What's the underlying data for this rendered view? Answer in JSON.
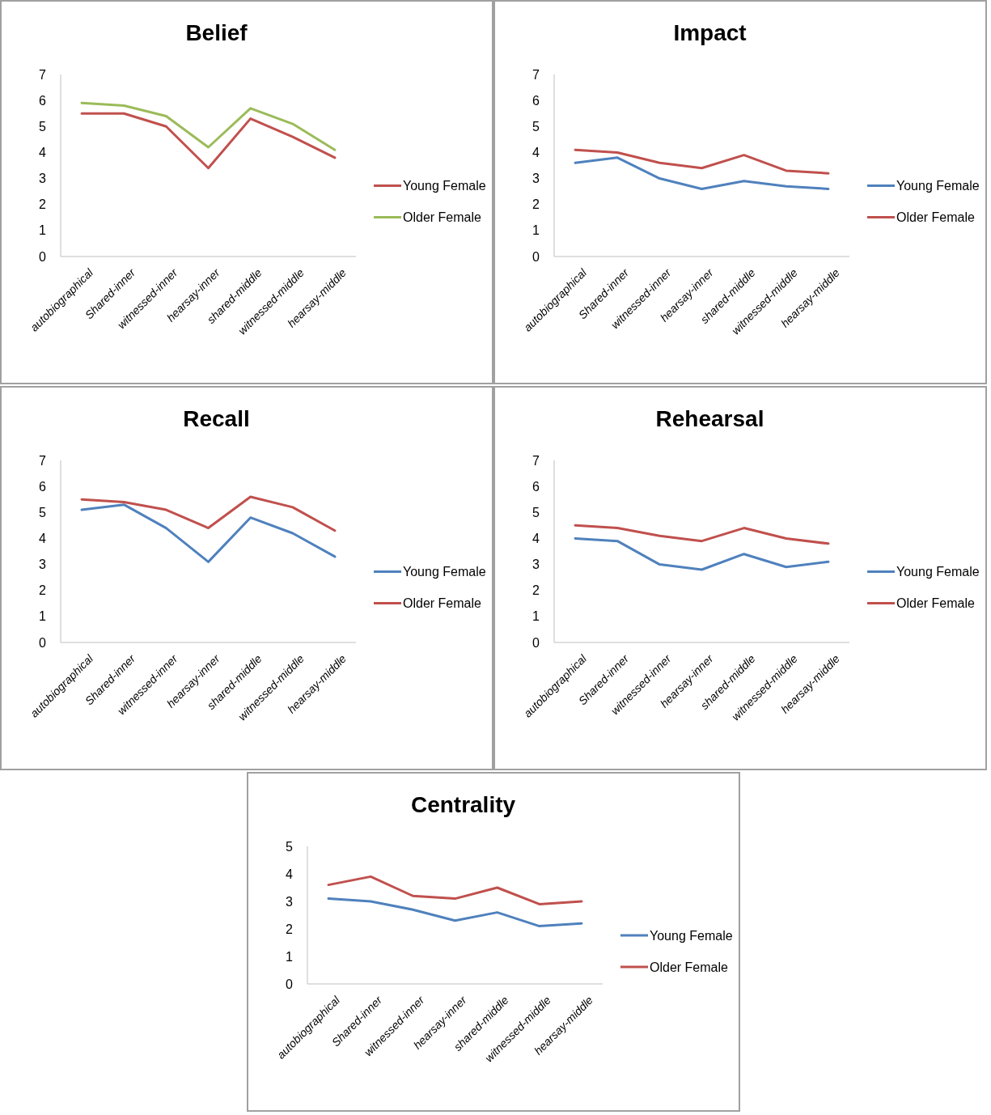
{
  "chart_data": [
    {
      "type": "line",
      "title": "Belief",
      "categories": [
        "autobiographical",
        "Shared-inner",
        "witnessed-inner",
        "hearsay-inner",
        "shared-middle",
        "witnessed-middle",
        "hearsay-middle"
      ],
      "ylim": [
        0,
        7
      ],
      "yticks": [
        0,
        1,
        2,
        3,
        4,
        5,
        6,
        7
      ],
      "legend": "right",
      "grid": false,
      "series": [
        {
          "name": "Young Female",
          "color": "#c0504d",
          "values": [
            5.5,
            5.5,
            5.0,
            3.4,
            5.3,
            4.6,
            3.8
          ]
        },
        {
          "name": "Older Female",
          "color": "#9bbb59",
          "values": [
            5.9,
            5.8,
            5.4,
            4.2,
            5.7,
            5.1,
            4.1
          ]
        }
      ]
    },
    {
      "type": "line",
      "title": "Impact",
      "categories": [
        "autobiographical",
        "Shared-inner",
        "witnessed-inner",
        "hearsay-inner",
        "shared-middle",
        "witnessed-middle",
        "hearsay-middle"
      ],
      "ylim": [
        0,
        7
      ],
      "yticks": [
        0,
        1,
        2,
        3,
        4,
        5,
        6,
        7
      ],
      "legend": "right",
      "grid": false,
      "series": [
        {
          "name": "Young Female",
          "color": "#4f81bd",
          "values": [
            3.6,
            3.8,
            3.0,
            2.6,
            2.9,
            2.7,
            2.6
          ]
        },
        {
          "name": "Older Female",
          "color": "#c0504d",
          "values": [
            4.1,
            4.0,
            3.6,
            3.4,
            3.9,
            3.3,
            3.2
          ]
        }
      ]
    },
    {
      "type": "line",
      "title": "Recall",
      "categories": [
        "autobiographical",
        "Shared-inner",
        "witnessed-inner",
        "hearsay-inner",
        "shared-middle",
        "witnessed-middle",
        "hearsay-middle"
      ],
      "ylim": [
        0,
        7
      ],
      "yticks": [
        0,
        1,
        2,
        3,
        4,
        5,
        6,
        7
      ],
      "legend": "right",
      "grid": false,
      "series": [
        {
          "name": "Young Female",
          "color": "#4f81bd",
          "values": [
            5.1,
            5.3,
            4.4,
            3.1,
            4.8,
            4.2,
            3.3
          ]
        },
        {
          "name": "Older Female",
          "color": "#c0504d",
          "values": [
            5.5,
            5.4,
            5.1,
            4.4,
            5.6,
            5.2,
            4.3
          ]
        }
      ]
    },
    {
      "type": "line",
      "title": "Rehearsal",
      "categories": [
        "autobiographical",
        "Shared-inner",
        "witnessed-inner",
        "hearsay-inner",
        "shared-middle",
        "witnessed-middle",
        "hearsay-middle"
      ],
      "ylim": [
        0,
        7
      ],
      "yticks": [
        0,
        1,
        2,
        3,
        4,
        5,
        6,
        7
      ],
      "legend": "right",
      "grid": false,
      "series": [
        {
          "name": "Young Female",
          "color": "#4f81bd",
          "values": [
            4.0,
            3.9,
            3.0,
            2.8,
            3.4,
            2.9,
            3.1
          ]
        },
        {
          "name": "Older Female",
          "color": "#c0504d",
          "values": [
            4.5,
            4.4,
            4.1,
            3.9,
            4.4,
            4.0,
            3.8
          ]
        }
      ]
    },
    {
      "type": "line",
      "title": "Centrality",
      "categories": [
        "autobiographical",
        "Shared-inner",
        "witnessed-inner",
        "hearsay-inner",
        "shared-middle",
        "witnessed-middle",
        "hearsay-middle"
      ],
      "ylim": [
        0,
        5
      ],
      "yticks": [
        0,
        1,
        2,
        3,
        4,
        5
      ],
      "legend": "right",
      "grid": false,
      "series": [
        {
          "name": "Young Female",
          "color": "#4f81bd",
          "values": [
            3.1,
            3.0,
            2.7,
            2.3,
            2.6,
            2.1,
            2.2
          ]
        },
        {
          "name": "Older Female",
          "color": "#c0504d",
          "values": [
            3.6,
            3.9,
            3.2,
            3.1,
            3.5,
            2.9,
            3.0
          ]
        }
      ]
    }
  ]
}
